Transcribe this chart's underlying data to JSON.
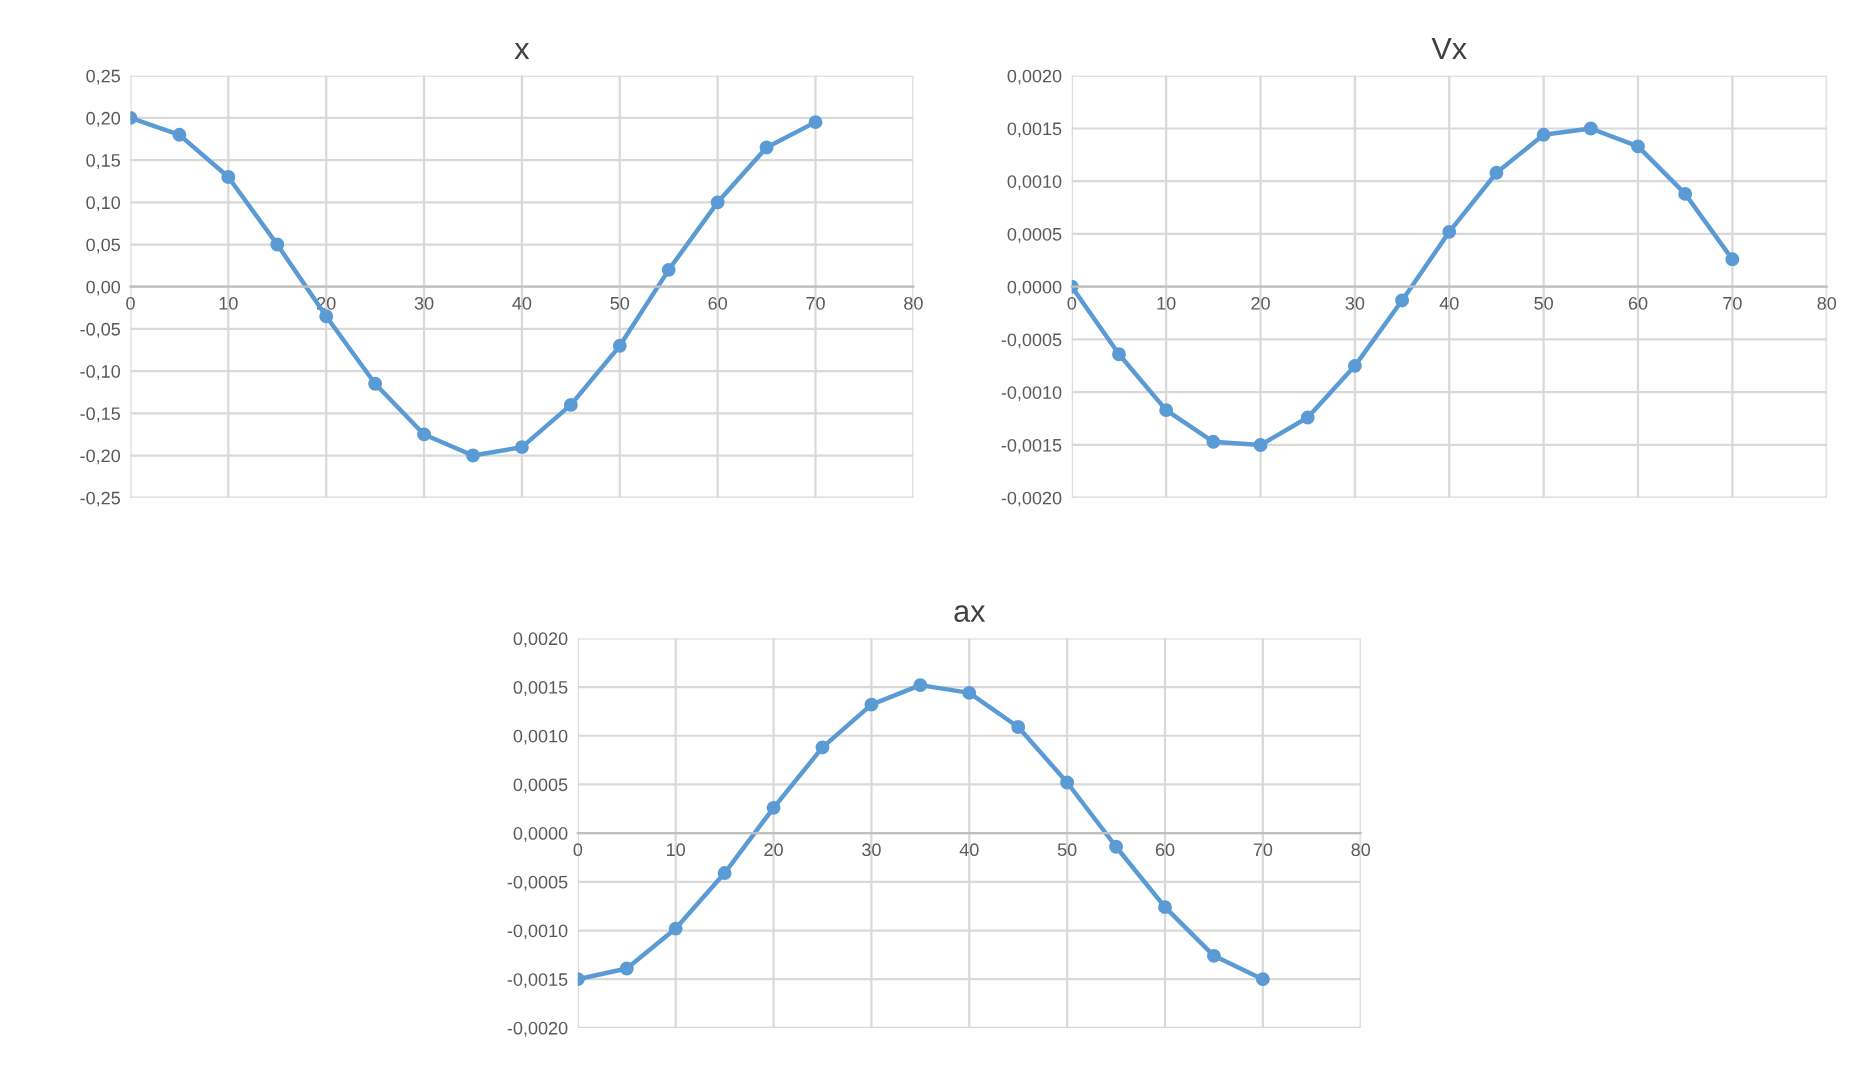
{
  "chart_data": [
    {
      "type": "line",
      "title": "x",
      "x": [
        0,
        5,
        10,
        15,
        20,
        25,
        30,
        35,
        40,
        45,
        50,
        55,
        60,
        65,
        70
      ],
      "series": [
        {
          "color": "#5b9bd5",
          "values": [
            0.2,
            0.18,
            0.13,
            0.05,
            -0.035,
            -0.115,
            -0.175,
            -0.2,
            -0.19,
            -0.14,
            -0.07,
            0.02,
            0.1,
            0.165,
            0.195
          ]
        }
      ],
      "xlim": [
        0,
        80
      ],
      "xticks": [
        0,
        10,
        20,
        30,
        40,
        50,
        60,
        70,
        80
      ],
      "ylim": [
        -0.25,
        0.25
      ],
      "yticks": [
        {
          "value": -0.25,
          "label": "-0,25"
        },
        {
          "value": -0.2,
          "label": "-0,20"
        },
        {
          "value": -0.15,
          "label": "-0,15"
        },
        {
          "value": -0.1,
          "label": "-0,10"
        },
        {
          "value": -0.05,
          "label": "-0,05"
        },
        {
          "value": 0,
          "label": "0,00"
        },
        {
          "value": 0.05,
          "label": "0,05"
        },
        {
          "value": 0.1,
          "label": "0,10"
        },
        {
          "value": 0.15,
          "label": "0,15"
        },
        {
          "value": 0.2,
          "label": "0,20"
        },
        {
          "value": 0.25,
          "label": "0,25"
        }
      ],
      "grid": true,
      "marker": "circle",
      "line_style": "solid"
    },
    {
      "type": "line",
      "title": "Vx",
      "x": [
        0,
        5,
        10,
        15,
        20,
        25,
        30,
        35,
        40,
        45,
        50,
        55,
        60,
        65,
        70
      ],
      "series": [
        {
          "color": "#5b9bd5",
          "values": [
            0,
            -0.00064,
            -0.00117,
            -0.00147,
            -0.0015,
            -0.00124,
            -0.00075,
            -0.00013,
            0.00052,
            0.00108,
            0.00144,
            0.0015,
            0.00133,
            0.00088,
            0.00026
          ]
        }
      ],
      "xlim": [
        0,
        80
      ],
      "xticks": [
        0,
        10,
        20,
        30,
        40,
        50,
        60,
        70,
        80
      ],
      "ylim": [
        -0.002,
        0.002
      ],
      "yticks": [
        {
          "value": -0.002,
          "label": "-0,0020"
        },
        {
          "value": -0.0015,
          "label": "-0,0015"
        },
        {
          "value": -0.001,
          "label": "-0,0010"
        },
        {
          "value": -0.0005,
          "label": "-0,0005"
        },
        {
          "value": 0,
          "label": "0,0000"
        },
        {
          "value": 0.0005,
          "label": "0,0005"
        },
        {
          "value": 0.001,
          "label": "0,0010"
        },
        {
          "value": 0.0015,
          "label": "0,0015"
        },
        {
          "value": 0.002,
          "label": "0,0020"
        }
      ],
      "grid": true,
      "marker": "circle",
      "line_style": "solid"
    },
    {
      "type": "line",
      "title": "ax",
      "x": [
        0,
        5,
        10,
        15,
        20,
        25,
        30,
        35,
        40,
        45,
        50,
        55,
        60,
        65,
        70
      ],
      "series": [
        {
          "color": "#5b9bd5",
          "values": [
            -0.0015,
            -0.00139,
            -0.00098,
            -0.00041,
            0.00026,
            0.00088,
            0.00132,
            0.00152,
            0.00144,
            0.00109,
            0.00052,
            -0.00014,
            -0.00076,
            -0.00126,
            -0.0015
          ]
        }
      ],
      "xlim": [
        0,
        80
      ],
      "xticks": [
        0,
        10,
        20,
        30,
        40,
        50,
        60,
        70,
        80
      ],
      "ylim": [
        -0.002,
        0.002
      ],
      "yticks": [
        {
          "value": -0.002,
          "label": "-0,0020"
        },
        {
          "value": -0.0015,
          "label": "-0,0015"
        },
        {
          "value": -0.001,
          "label": "-0,0010"
        },
        {
          "value": -0.0005,
          "label": "-0,0005"
        },
        {
          "value": 0,
          "label": "0,0000"
        },
        {
          "value": 0.0005,
          "label": "0,0005"
        },
        {
          "value": 0.001,
          "label": "0,0010"
        },
        {
          "value": 0.0015,
          "label": "0,0015"
        },
        {
          "value": 0.002,
          "label": "0,0020"
        }
      ],
      "grid": true,
      "marker": "circle",
      "line_style": "solid"
    }
  ]
}
